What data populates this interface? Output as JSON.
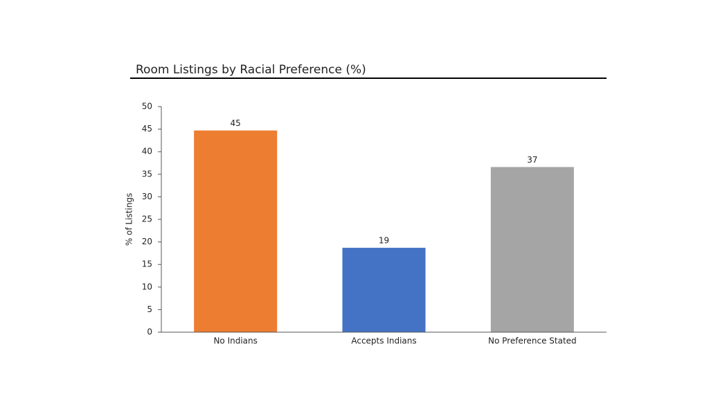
{
  "chart_data": {
    "type": "bar",
    "title": "Room Listings by Racial Preference (%)",
    "y_label": "% of Listings",
    "categories": [
      "No Indians",
      "Accepts Indians",
      "No Preference Stated"
    ],
    "values": [
      44.7,
      18.7,
      36.6
    ],
    "value_labels": [
      "45",
      "19",
      "37"
    ],
    "colors": [
      "#ed7d31",
      "#4472c4",
      "#a5a5a5"
    ],
    "ylim": [
      0,
      50
    ],
    "yticks": [
      0,
      5,
      10,
      15,
      20,
      25,
      30,
      35,
      40,
      45,
      50
    ],
    "grid": false
  }
}
